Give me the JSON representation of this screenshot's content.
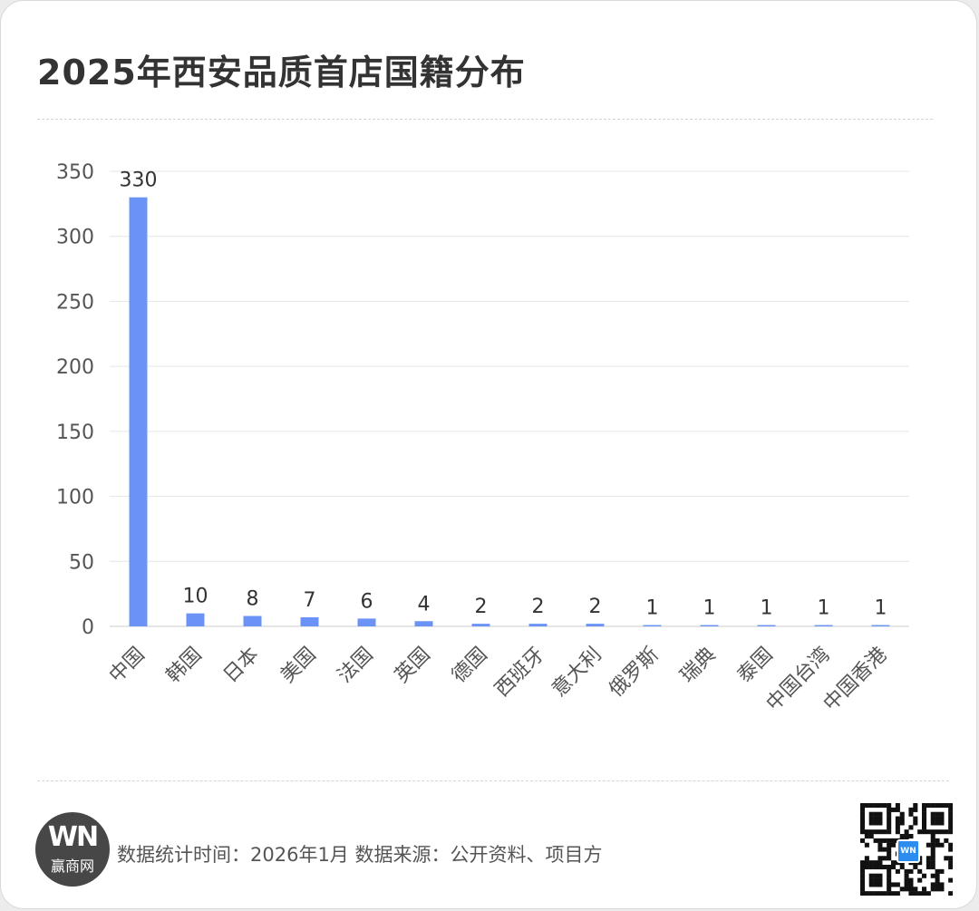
{
  "title": "2025年西安品质首店国籍分布",
  "footer": {
    "logo_mark": "WN",
    "logo_name": "赢商网",
    "source_text": "数据统计时间：2026年1月 数据来源：公开资料、项目方",
    "qr_badge": "WN"
  },
  "colors": {
    "bar": "#6b93f7",
    "grid": "#e6e6e6",
    "axis": "#cccccc"
  },
  "chart_data": {
    "type": "bar",
    "title": "2025年西安品质首店国籍分布",
    "xlabel": "",
    "ylabel": "",
    "ylim": [
      0,
      350
    ],
    "yticks": [
      0,
      50,
      100,
      150,
      200,
      250,
      300,
      350
    ],
    "grid": true,
    "legend": "none",
    "categories": [
      "中国",
      "韩国",
      "日本",
      "美国",
      "法国",
      "英国",
      "德国",
      "西班牙",
      "意大利",
      "俄罗斯",
      "瑞典",
      "泰国",
      "中国台湾",
      "中国香港"
    ],
    "values": [
      330,
      10,
      8,
      7,
      6,
      4,
      2,
      2,
      2,
      1,
      1,
      1,
      1,
      1
    ]
  }
}
